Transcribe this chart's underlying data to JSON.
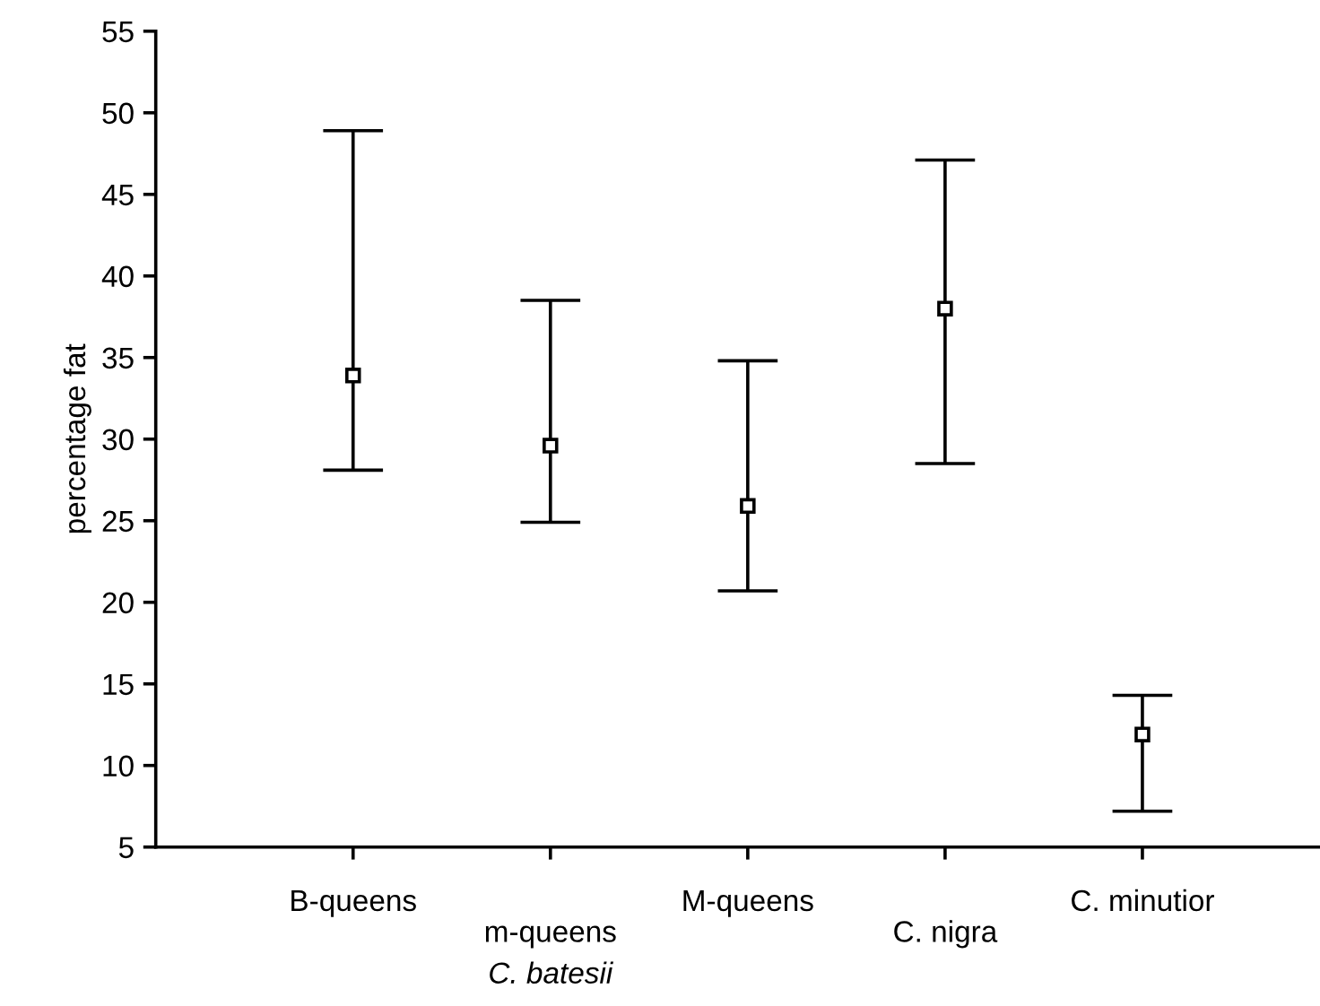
{
  "chart_data": {
    "type": "scatter",
    "ylabel": "percentage fat",
    "categories": [
      "B-queens",
      "m-queens",
      "M-queens",
      "C. nigra",
      "C. minutior"
    ],
    "values": [
      33.9,
      29.6,
      25.9,
      38.0,
      11.9
    ],
    "errors": [
      [
        28.1,
        48.9
      ],
      [
        24.9,
        38.5
      ],
      [
        20.7,
        34.8
      ],
      [
        28.5,
        47.1
      ],
      [
        7.2,
        14.3
      ]
    ],
    "color": "#000000",
    "marker": "square",
    "ylim": [
      5,
      55
    ],
    "yticks": [
      5,
      10,
      15,
      20,
      25,
      30,
      35,
      40,
      45,
      50,
      55
    ],
    "annotations": [
      "C. batesii"
    ],
    "grid": false,
    "legend": false
  }
}
